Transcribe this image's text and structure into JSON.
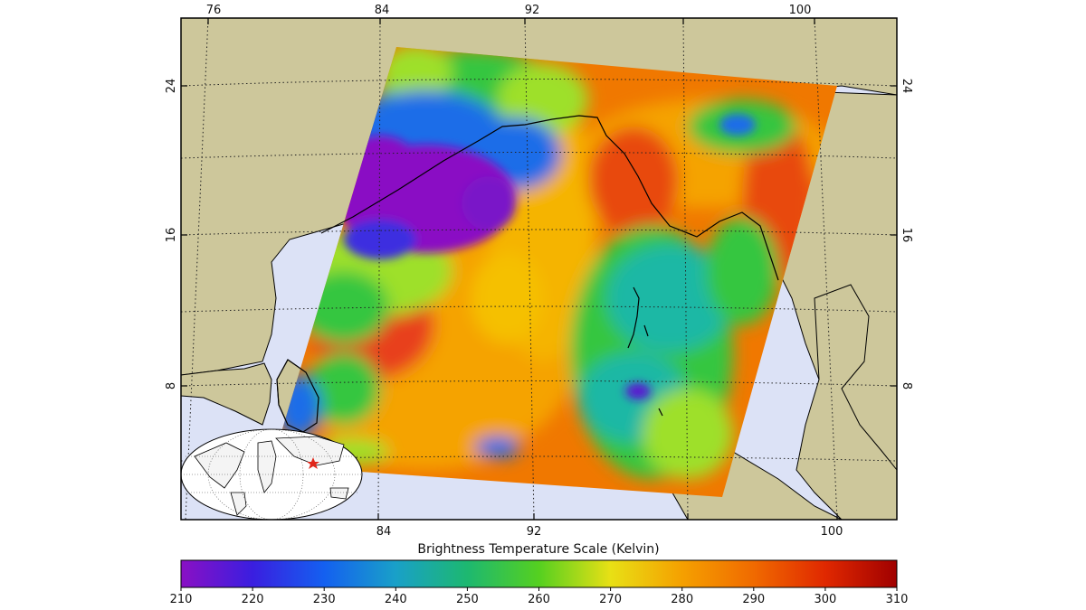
{
  "map": {
    "top_lon_labels": [
      "76",
      "84",
      "92",
      "100"
    ],
    "bottom_lon_labels": [
      "84",
      "92",
      "100"
    ],
    "left_lat_labels": [
      "24",
      "16",
      "8"
    ],
    "right_lat_labels": [
      "24",
      "16",
      "8"
    ],
    "colors": {
      "land": "#cdc79b",
      "ocean": "#dce2f6",
      "coastline": "#000000",
      "inset_marker": "#e0261a"
    },
    "swath_palette": [
      "#8a0fc4",
      "#3d2fe0",
      "#1e6de8",
      "#1fb8a5",
      "#35c640",
      "#9ee02a",
      "#f5a300",
      "#f06e00",
      "#e8401e"
    ],
    "inset_icon": "world-globe-icon",
    "marker_icon": "red-star-icon"
  },
  "scale": {
    "title": "Brightness Temperature Scale (Kelvin)",
    "colors": [
      "#8a10c4",
      "#3a1ee0",
      "#1460f0",
      "#19a0c8",
      "#1db870",
      "#55d020",
      "#c8e015",
      "#f0d010",
      "#f5a000",
      "#f06a00",
      "#e02800",
      "#a80000"
    ],
    "ticks": [
      "210",
      "220",
      "230",
      "240",
      "250",
      "260",
      "270",
      "280",
      "290",
      "300",
      "310"
    ]
  }
}
